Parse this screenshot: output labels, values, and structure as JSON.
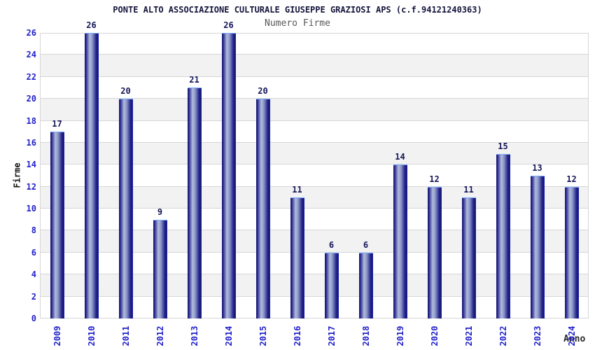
{
  "header": {
    "title": "PONTE ALTO ASSOCIAZIONE CULTURALE GIUSEPPE GRAZIOSI APS (c.f.94121240363)",
    "subtitle": "Numero Firme"
  },
  "chart_data": {
    "type": "bar",
    "title": "PONTE ALTO ASSOCIAZIONE CULTURALE GIUSEPPE GRAZIOSI APS (c.f.94121240363)",
    "subtitle": "Numero Firme",
    "xlabel": "Anno",
    "ylabel": "Firme",
    "categories": [
      "2009",
      "2010",
      "2011",
      "2012",
      "2013",
      "2014",
      "2015",
      "2016",
      "2017",
      "2018",
      "2019",
      "2020",
      "2021",
      "2022",
      "2023",
      "2024"
    ],
    "values": [
      17,
      26,
      20,
      9,
      21,
      26,
      20,
      11,
      6,
      6,
      14,
      12,
      11,
      15,
      13,
      12
    ],
    "ylim": [
      0,
      26
    ],
    "ytick_step": 2,
    "grid": true,
    "legend": "none",
    "band_style": "alternating horizontal stripes every 2 units",
    "colors": {
      "title": "#14143c",
      "subtitle": "#585858",
      "tick_label": "#2222cc",
      "value_label": "#16165a",
      "axis_title_y": "#111111",
      "axis_title_x": "#2a2a2a",
      "band_white": "#ffffff",
      "band_gray": "#f2f2f2",
      "gridline": "#d6d6d6",
      "bar_dark": "#17176e",
      "bar_mid": "#23238c",
      "bar_light": "#b2bcdc",
      "bar_edge_right": "#2233cc",
      "bar_edge_top": "#77aaff"
    }
  }
}
